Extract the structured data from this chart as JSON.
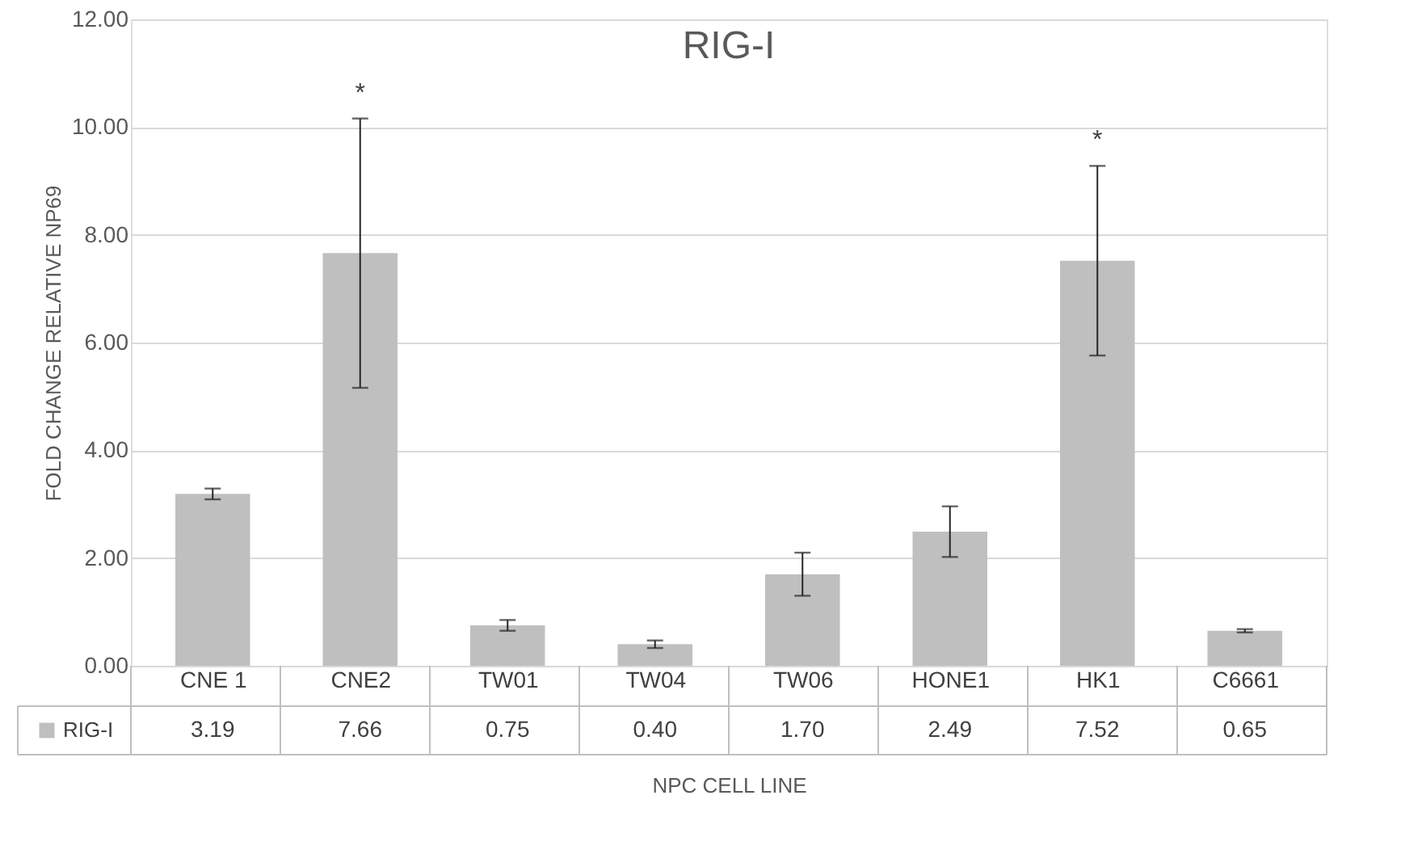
{
  "chart_data": {
    "type": "bar",
    "title": "RIG-I",
    "xlabel": "NPC CELL LINE",
    "ylabel": "FOLD CHANGE RELATIVE NP69",
    "categories": [
      "CNE 1",
      "CNE2",
      "TW01",
      "TW04",
      "TW06",
      "HONE1",
      "HK1",
      "C6661"
    ],
    "series": [
      {
        "name": "RIG-I",
        "color": "#bfbfbf",
        "values": [
          3.19,
          7.66,
          0.75,
          0.4,
          1.7,
          2.49,
          7.52,
          0.65
        ],
        "errors": [
          0.1,
          2.5,
          0.1,
          0.07,
          0.4,
          0.47,
          1.76,
          0.03
        ],
        "value_labels": [
          "3.19",
          "7.66",
          "0.75",
          "0.40",
          "1.70",
          "2.49",
          "7.52",
          "0.65"
        ]
      }
    ],
    "ylim": [
      0,
      12
    ],
    "yticks": [
      {
        "value": 0,
        "label": "0.00"
      },
      {
        "value": 2,
        "label": "2.00"
      },
      {
        "value": 4,
        "label": "4.00"
      },
      {
        "value": 6,
        "label": "6.00"
      },
      {
        "value": 8,
        "label": "8.00"
      },
      {
        "value": 10,
        "label": "10.00"
      },
      {
        "value": 12,
        "label": "12.00"
      }
    ],
    "grid": "y",
    "legend": "bottom",
    "annotations": [
      {
        "text": "*",
        "x": "CNE2",
        "y": 10.16
      },
      {
        "text": "*",
        "x": "HK1",
        "y": 9.28
      }
    ]
  }
}
